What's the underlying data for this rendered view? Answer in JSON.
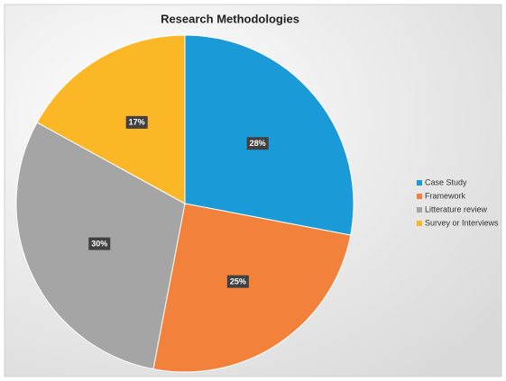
{
  "chart_data": {
    "type": "pie",
    "title": "Research Methodologies",
    "categories": [
      "Case Study",
      "Framework",
      "Litterature review",
      "Survey or Interviews"
    ],
    "values": [
      28,
      25,
      30,
      17
    ],
    "value_labels": [
      "28%",
      "25%",
      "30%",
      "17%"
    ],
    "colors": [
      "#1a9bd7",
      "#f2823b",
      "#a5a5a5",
      "#fbb726"
    ],
    "legend": "right"
  }
}
